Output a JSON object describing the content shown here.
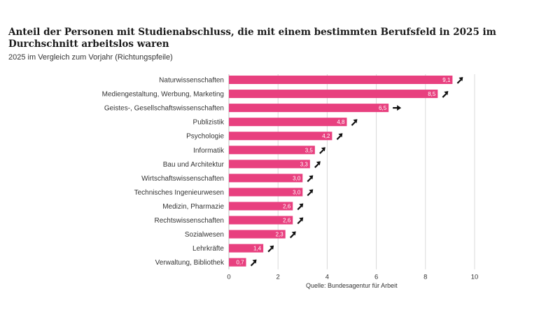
{
  "chart_data": {
    "type": "bar",
    "orientation": "horizontal",
    "title": "Anteil der Personen mit Studienabschluss, die mit einem bestimmten Berufsfeld in 2025 im Durchschnitt arbeitslos waren",
    "subtitle": "2025 im Vergleich zum Vorjahr (Richtungspfeile)",
    "source": "Quelle: Bundesagentur für Arbeit",
    "xlim": [
      0,
      10
    ],
    "xticks": [
      0,
      2,
      4,
      6,
      8,
      10
    ],
    "grid": true,
    "bar_color": "#e8407f",
    "categories": [
      "Naturwissenschaften",
      "Mediengestaltung, Werbung, Marketing",
      "Geistes-, Gesellschaftswissenschaften",
      "Publizistik",
      "Psychologie",
      "Informatik",
      "Bau und Architektur",
      "Wirtschaftswissenschaften",
      "Technisches Ingenieurwesen",
      "Medizin, Pharmazie",
      "Rechtswissenschaften",
      "Sozialwesen",
      "Lehrkräfte",
      "Verwaltung, Bibliothek"
    ],
    "values": [
      9.1,
      8.5,
      6.5,
      4.8,
      4.2,
      3.5,
      3.3,
      3.0,
      3.0,
      2.6,
      2.6,
      2.3,
      1.4,
      0.7
    ],
    "value_labels": [
      "9,1",
      "8,5",
      "6,5",
      "4,8",
      "4,2",
      "3,5",
      "3,3",
      "3,0",
      "3,0",
      "2,6",
      "2,6",
      "2,3",
      "1,4",
      "0,7"
    ],
    "trend": [
      "up",
      "up",
      "flat",
      "up",
      "up",
      "up",
      "up",
      "up",
      "up",
      "up",
      "up",
      "up",
      "up",
      "up"
    ]
  }
}
